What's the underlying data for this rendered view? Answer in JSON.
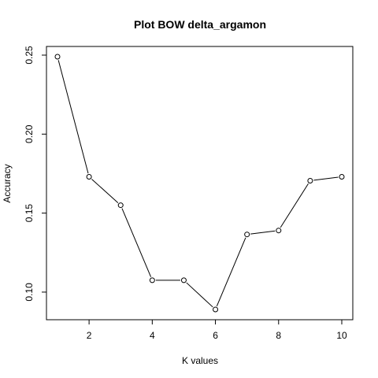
{
  "chart_data": {
    "type": "line",
    "title": "Plot BOW delta_argamon",
    "xlabel": "K values",
    "ylabel": "Accuracy",
    "x": [
      1,
      2,
      3,
      4,
      5,
      6,
      7,
      8,
      9,
      10
    ],
    "y": [
      0.249,
      0.173,
      0.155,
      0.1075,
      0.1075,
      0.089,
      0.1365,
      0.139,
      0.1705,
      0.173
    ],
    "xlim": [
      1,
      10
    ],
    "ylim": [
      0.089,
      0.249
    ],
    "xticks": [
      2,
      4,
      6,
      8,
      10
    ],
    "yticks": [
      0.1,
      0.15,
      0.2,
      0.25
    ],
    "xtick_labels": [
      "2",
      "4",
      "6",
      "8",
      "10"
    ],
    "ytick_labels": [
      "0.10",
      "0.15",
      "0.20",
      "0.25"
    ],
    "marker": "open-circle",
    "grid": false,
    "legend": "none"
  }
}
